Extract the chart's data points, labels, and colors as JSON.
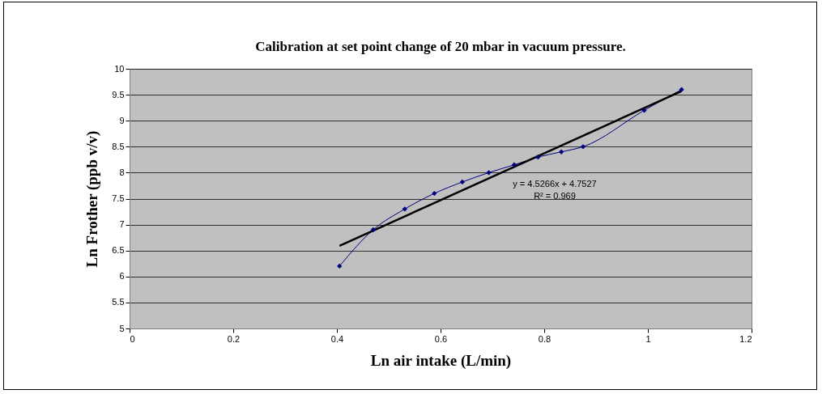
{
  "chart_data": {
    "type": "line",
    "title": "Calibration at set point change of 20 mbar in vacuum pressure.",
    "xlabel": "Ln air intake (L/min)",
    "ylabel": "Ln Frother (ppb v/v)",
    "x": [
      0.405,
      0.47,
      0.531,
      0.588,
      0.642,
      0.693,
      0.742,
      0.788,
      0.833,
      0.875,
      0.993,
      1.065
    ],
    "series": [
      {
        "color": "#000080",
        "marker": "diamond",
        "values": [
          6.2,
          6.9,
          7.3,
          7.6,
          7.82,
          8.0,
          8.15,
          8.3,
          8.4,
          8.5,
          9.2,
          9.6
        ]
      },
      {
        "color": "#000000",
        "marker": "none",
        "x": [
          0.405,
          1.065
        ],
        "values": [
          6.59,
          9.57
        ]
      }
    ],
    "annotations": [
      "y = 4.5266x + 4.7527",
      "R² = 0.969"
    ],
    "xlim": [
      0,
      1.2
    ],
    "xticks": [
      0,
      0.2,
      0.4,
      0.6,
      0.8,
      1,
      1.2
    ],
    "ylim": [
      5,
      10
    ],
    "yticks": [
      5,
      5.5,
      6,
      6.5,
      7,
      7.5,
      8,
      8.5,
      9,
      9.5,
      10
    ],
    "grid": "y"
  }
}
